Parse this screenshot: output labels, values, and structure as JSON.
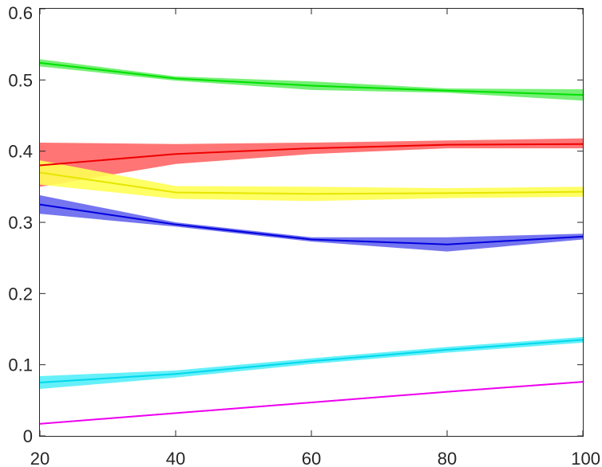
{
  "chart_data": {
    "type": "line",
    "title": "",
    "xlabel": "",
    "ylabel": "",
    "x": [
      20,
      40,
      60,
      80,
      100
    ],
    "xlim": [
      20,
      100
    ],
    "ylim": [
      0,
      0.6
    ],
    "xticks": [
      "20",
      "40",
      "60",
      "80",
      "100"
    ],
    "yticks": [
      "0",
      "0.1",
      "0.2",
      "0.3",
      "0.4",
      "0.5",
      "0.6"
    ],
    "grid": false,
    "legend": "none",
    "series": [
      {
        "color": "#00e000",
        "band_color": "#66ee66",
        "values": [
          0.524,
          0.502,
          0.492,
          0.485,
          0.479
        ],
        "lower": [
          0.519,
          0.499,
          0.486,
          0.482,
          0.471
        ],
        "upper": [
          0.529,
          0.505,
          0.498,
          0.488,
          0.487
        ]
      },
      {
        "color": "#ee0000",
        "band_color": "#ff6666",
        "values": [
          0.38,
          0.396,
          0.404,
          0.409,
          0.41
        ],
        "lower": [
          0.35,
          0.382,
          0.396,
          0.404,
          0.404
        ],
        "upper": [
          0.412,
          0.41,
          0.412,
          0.415,
          0.418
        ]
      },
      {
        "color": "#e6e600",
        "band_color": "#ffff55",
        "values": [
          0.37,
          0.342,
          0.34,
          0.341,
          0.343
        ],
        "lower": [
          0.353,
          0.333,
          0.33,
          0.334,
          0.336
        ],
        "upper": [
          0.387,
          0.351,
          0.35,
          0.348,
          0.35
        ]
      },
      {
        "color": "#0000dd",
        "band_color": "#6666ee",
        "values": [
          0.325,
          0.297,
          0.276,
          0.269,
          0.28
        ],
        "lower": [
          0.312,
          0.294,
          0.273,
          0.259,
          0.276
        ],
        "upper": [
          0.338,
          0.3,
          0.279,
          0.279,
          0.284
        ]
      },
      {
        "color": "#00d8ec",
        "band_color": "#55eef8",
        "values": [
          0.075,
          0.087,
          0.105,
          0.121,
          0.135
        ],
        "lower": [
          0.066,
          0.082,
          0.101,
          0.117,
          0.131
        ],
        "upper": [
          0.084,
          0.092,
          0.109,
          0.125,
          0.139
        ]
      },
      {
        "color": "#ee00ee",
        "band_color": "#ff66ff",
        "values": [
          0.017,
          0.032,
          0.047,
          0.062,
          0.076
        ],
        "lower": [
          0.016,
          0.031,
          0.046,
          0.061,
          0.075
        ],
        "upper": [
          0.018,
          0.033,
          0.048,
          0.063,
          0.077
        ]
      }
    ]
  }
}
